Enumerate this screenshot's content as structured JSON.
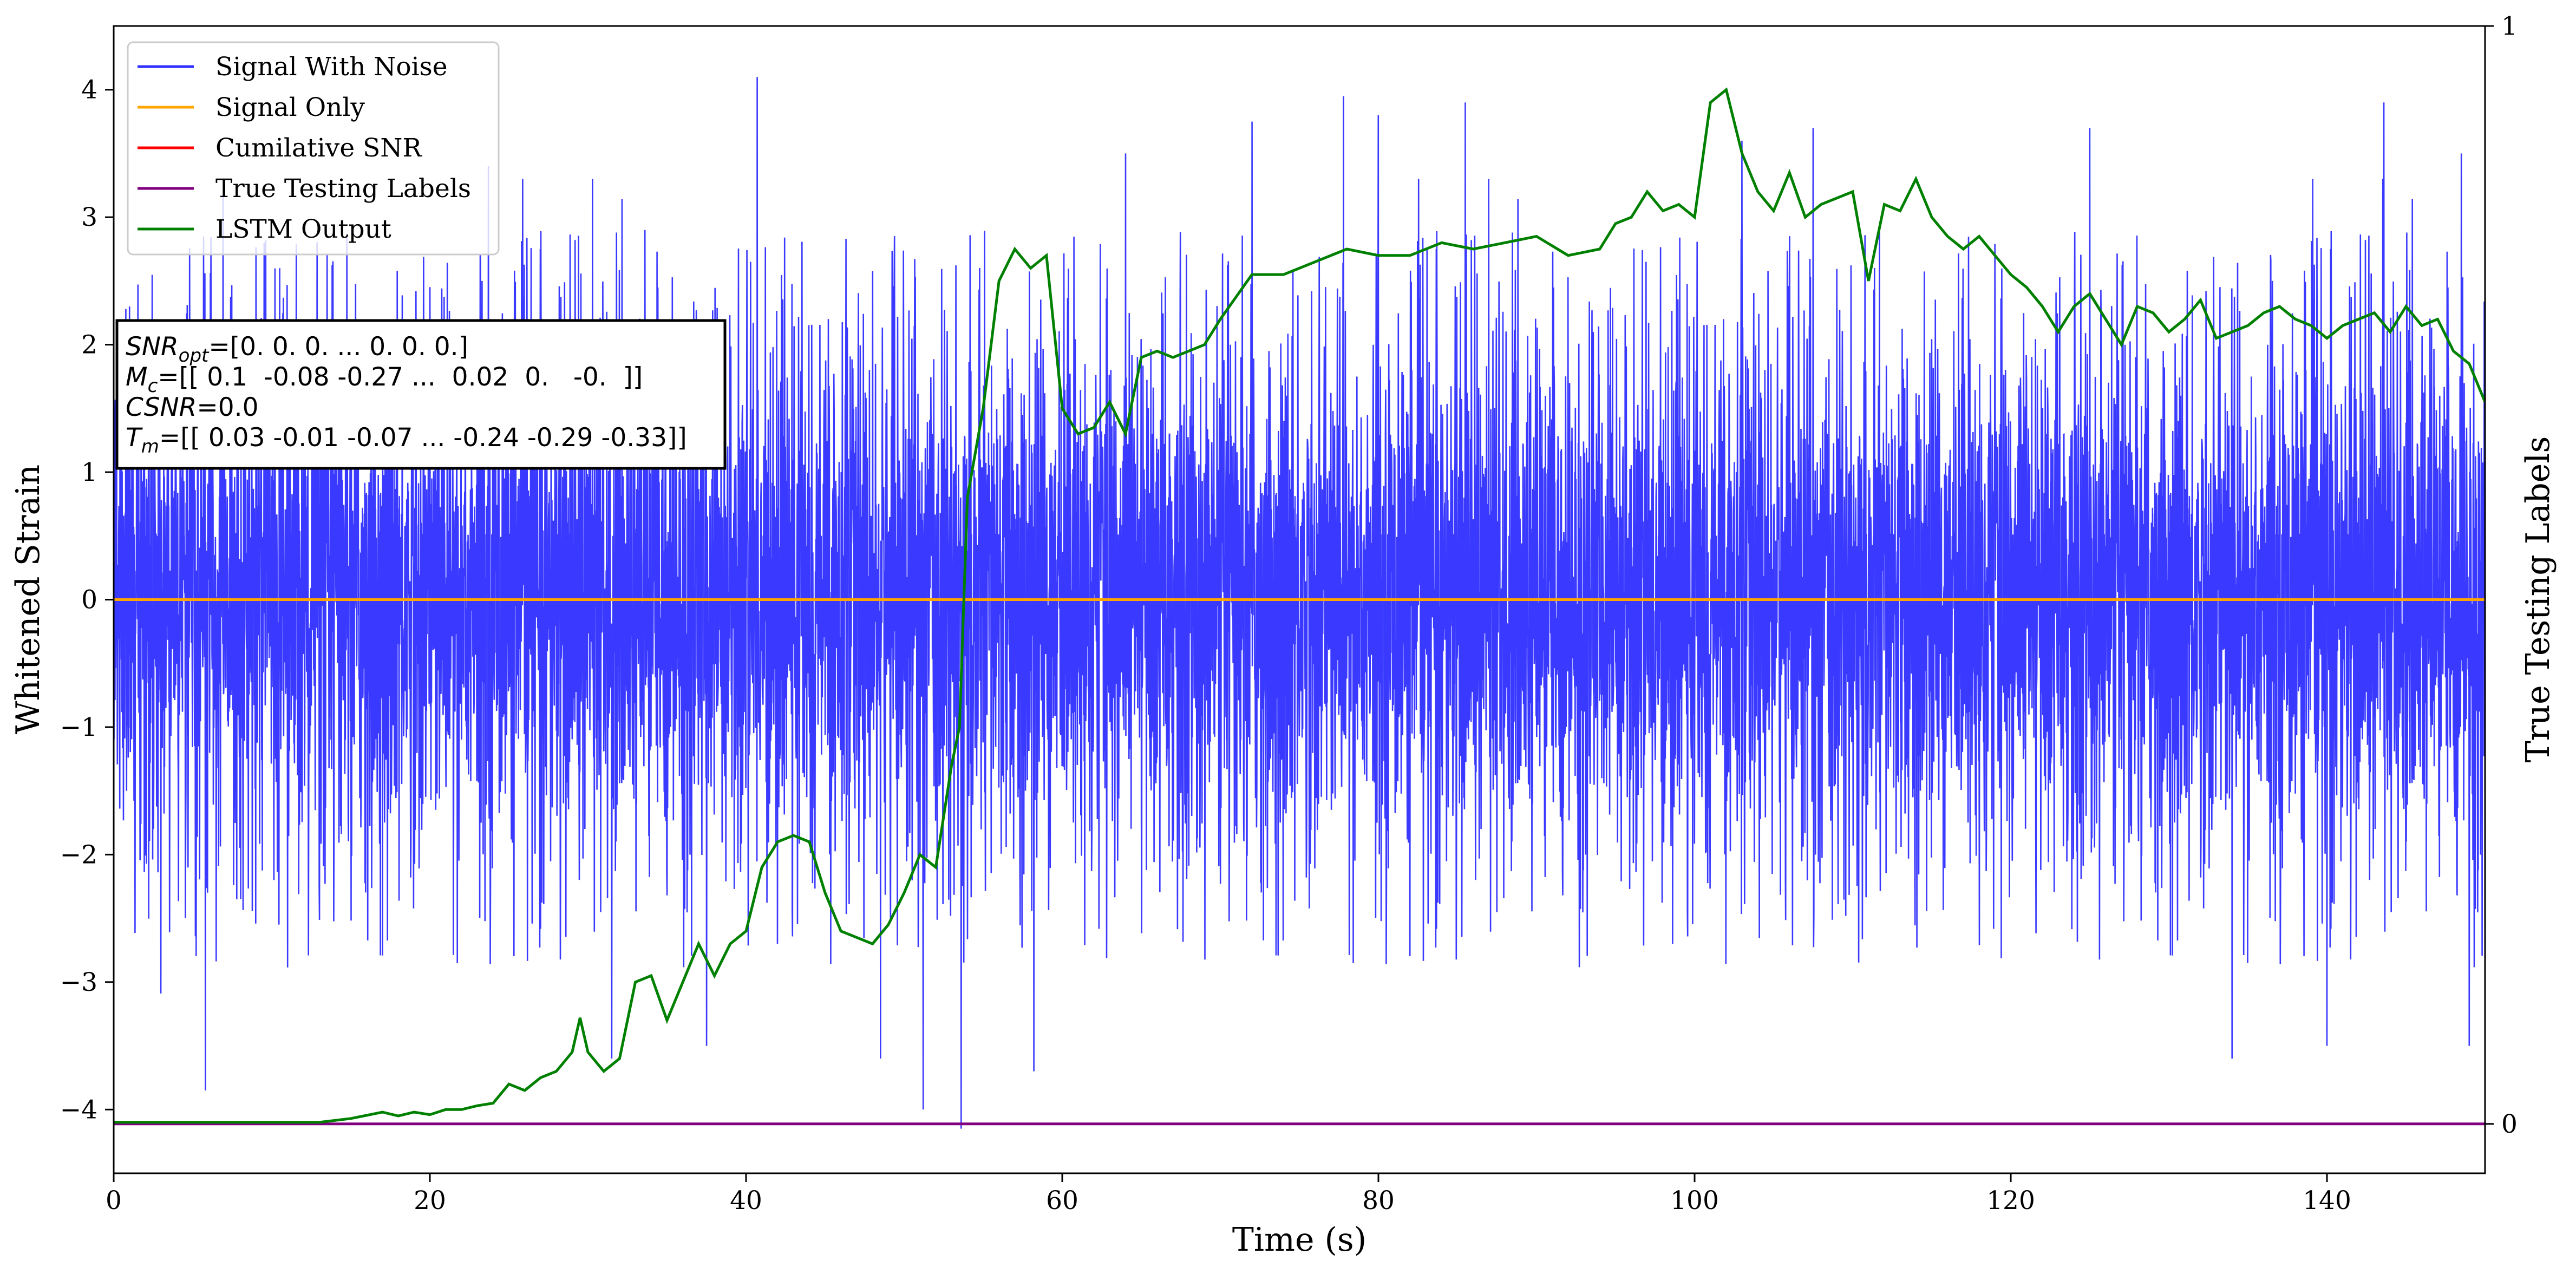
{
  "chart_data": {
    "type": "line",
    "xlabel": "Time (s)",
    "ylabel_left": "Whitened Strain",
    "ylabel_right": "True Testing Labels",
    "xlim": [
      0,
      150
    ],
    "ylim_left": [
      -4.5,
      4.5
    ],
    "ylim_right": [
      -0.045,
      1.0
    ],
    "x_ticks": [
      0,
      20,
      40,
      60,
      80,
      100,
      120,
      140
    ],
    "y_ticks_left": [
      -4,
      -3,
      -2,
      -1,
      0,
      1,
      2,
      3,
      4
    ],
    "y_ticks_right": [
      0,
      1
    ],
    "grid": false,
    "legend_position": "top-left",
    "legend": [
      {
        "label": "Signal With Noise",
        "color": "#3333ff"
      },
      {
        "label": "Signal Only",
        "color": "#ffa500"
      },
      {
        "label": "Cumilative SNR",
        "color": "#ff0000"
      },
      {
        "label": "True Testing Labels",
        "color": "#800080"
      },
      {
        "label": "LSTM Output",
        "color": "#008000"
      }
    ],
    "annotation": {
      "lines": [
        {
          "var": "SNR",
          "sub": "opt",
          "value": "=[0. 0. 0. ... 0. 0. 0.]"
        },
        {
          "var": "M",
          "sub": "c",
          "value": "=[[ 0.1  -0.08 -0.27 ...  0.02  0.   -0.  ]]"
        },
        {
          "var": "CSNR",
          "sub": "",
          "value": "=0.0"
        },
        {
          "var": "T",
          "sub": "m",
          "value": "=[[ 0.03 -0.01 -0.07 ... -0.24 -0.29 -0.33]]"
        }
      ]
    },
    "series": [
      {
        "name": "Signal With Noise",
        "color": "#3333ff",
        "axis": "left",
        "kind": "noise",
        "x_range": [
          0,
          150
        ],
        "typical_range": [
          -2.2,
          2.3
        ],
        "peaks": [
          [
            1,
            2.3
          ],
          [
            5.8,
            -3.85
          ],
          [
            9.2,
            0.65
          ],
          [
            10.5,
            2.6
          ],
          [
            23.7,
            3.4
          ],
          [
            31.5,
            -3.6
          ],
          [
            33.6,
            2.9
          ],
          [
            37.5,
            -3.5
          ],
          [
            40.7,
            4.1
          ],
          [
            48.5,
            -3.6
          ],
          [
            51.2,
            -4.0
          ],
          [
            53.6,
            -4.15
          ],
          [
            58.2,
            -3.7
          ],
          [
            64,
            3.5
          ],
          [
            72,
            3.75
          ],
          [
            77.8,
            3.95
          ],
          [
            80,
            3.8
          ],
          [
            85.5,
            3.9
          ],
          [
            103,
            3.6
          ],
          [
            107.5,
            3.7
          ],
          [
            125,
            3.7
          ],
          [
            134,
            -3.6
          ],
          [
            140,
            -3.5
          ],
          [
            143.6,
            3.9
          ],
          [
            148.5,
            3.5
          ],
          [
            149,
            -3.5
          ]
        ]
      },
      {
        "name": "Signal Only",
        "color": "#ffa500",
        "axis": "left",
        "x": [
          0,
          150
        ],
        "y": [
          0,
          0
        ]
      },
      {
        "name": "True Testing Labels",
        "color": "#800080",
        "axis": "right",
        "x": [
          0,
          150
        ],
        "y": [
          0,
          0
        ]
      },
      {
        "name": "LSTM Output",
        "color": "#008000",
        "axis": "left",
        "x": [
          0,
          10,
          13,
          15,
          17,
          18,
          19,
          20,
          21,
          22,
          23,
          24,
          25,
          26,
          27,
          28,
          29,
          29.5,
          30,
          31,
          32,
          33,
          34,
          35,
          36,
          37,
          38,
          39,
          40,
          41,
          42,
          43,
          44,
          45,
          46,
          47,
          48,
          49,
          50,
          51,
          52,
          53,
          53.5,
          54,
          55,
          56,
          57,
          58,
          59,
          60,
          61,
          62,
          63,
          64,
          65,
          66,
          67,
          68,
          69,
          70,
          72,
          74,
          76,
          78,
          80,
          82,
          84,
          86,
          88,
          90,
          92,
          94,
          95,
          96,
          97,
          98,
          99,
          100,
          101,
          102,
          103,
          104,
          105,
          106,
          107,
          108,
          109,
          110,
          111,
          112,
          113,
          114,
          115,
          116,
          117,
          118,
          119,
          120,
          121,
          122,
          123,
          124,
          125,
          126,
          127,
          128,
          129,
          130,
          131,
          132,
          133,
          134,
          135,
          136,
          137,
          138,
          139,
          140,
          141,
          142,
          143,
          144,
          145,
          146,
          147,
          148,
          149,
          150
        ],
        "y": [
          -4.1,
          -4.1,
          -4.1,
          -4.07,
          -4.02,
          -4.05,
          -4.02,
          -4.04,
          -4.0,
          -4.0,
          -3.97,
          -3.95,
          -3.8,
          -3.85,
          -3.75,
          -3.7,
          -3.55,
          -3.28,
          -3.55,
          -3.7,
          -3.6,
          -3.0,
          -2.95,
          -3.3,
          -3.0,
          -2.7,
          -2.95,
          -2.7,
          -2.6,
          -2.1,
          -1.9,
          -1.85,
          -1.9,
          -2.3,
          -2.6,
          -2.65,
          -2.7,
          -2.55,
          -2.3,
          -2.0,
          -2.1,
          -1.3,
          -1.0,
          0.8,
          1.5,
          2.5,
          2.75,
          2.6,
          2.7,
          1.5,
          1.3,
          1.35,
          1.55,
          1.3,
          1.9,
          1.95,
          1.9,
          1.95,
          2.0,
          2.2,
          2.55,
          2.55,
          2.65,
          2.75,
          2.7,
          2.7,
          2.8,
          2.75,
          2.8,
          2.85,
          2.7,
          2.75,
          2.95,
          3.0,
          3.2,
          3.05,
          3.1,
          3.0,
          3.9,
          4.0,
          3.5,
          3.2,
          3.05,
          3.35,
          3.0,
          3.1,
          3.15,
          3.2,
          2.5,
          3.1,
          3.05,
          3.3,
          3.0,
          2.85,
          2.75,
          2.85,
          2.7,
          2.55,
          2.45,
          2.3,
          2.1,
          2.3,
          2.4,
          2.2,
          2.0,
          2.3,
          2.25,
          2.1,
          2.2,
          2.35,
          2.05,
          2.1,
          2.15,
          2.25,
          2.3,
          2.2,
          2.15,
          2.05,
          2.15,
          2.2,
          2.25,
          2.1,
          2.3,
          2.15,
          2.2,
          1.95,
          1.85,
          1.55
        ]
      }
    ]
  }
}
